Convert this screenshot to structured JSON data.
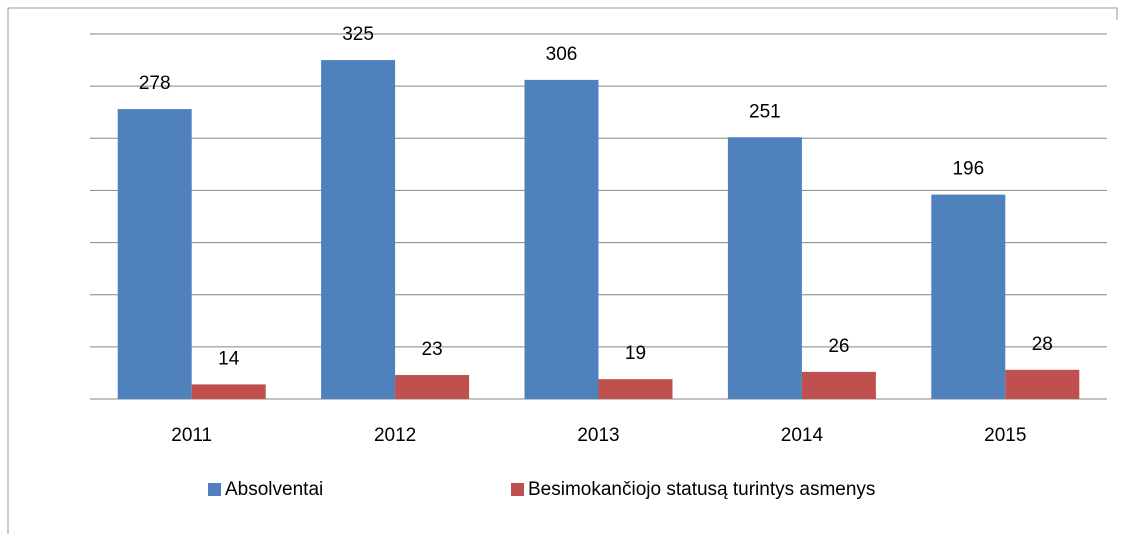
{
  "chart_data": {
    "type": "bar",
    "categories": [
      "2011",
      "2012",
      "2013",
      "2014",
      "2015"
    ],
    "series": [
      {
        "name": "Absolventai",
        "color": "#4f81bd",
        "values": [
          278,
          325,
          306,
          251,
          196
        ]
      },
      {
        "name": "Besimokančiojo statusą turintys asmenys",
        "color": "#c0504d",
        "values": [
          14,
          23,
          19,
          26,
          28
        ]
      }
    ],
    "ylim": [
      0,
      350
    ],
    "yticks": [
      0,
      50,
      100,
      150,
      200,
      250,
      300,
      350
    ],
    "grid": true,
    "legend": "bottom"
  }
}
